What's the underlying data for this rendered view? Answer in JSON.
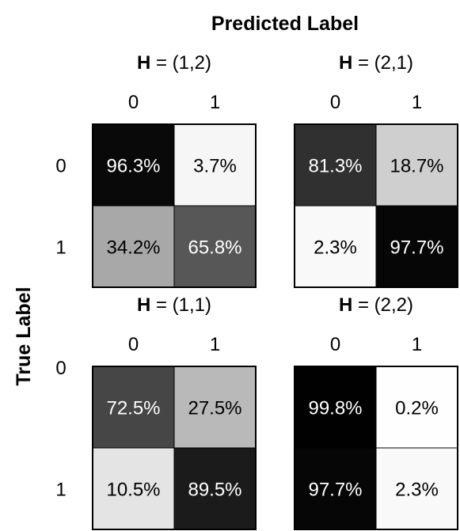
{
  "chart_data": {
    "type": "heatmap",
    "title": "Predicted Label",
    "ylabel": "True Label",
    "matrices": [
      {
        "label_prefix": "H",
        "label_value": " = (1,2)",
        "col_labels": [
          "0",
          "1"
        ],
        "row_labels": [
          "0",
          "1"
        ],
        "values": [
          [
            96.3,
            3.7
          ],
          [
            34.2,
            65.8
          ]
        ],
        "cell_text": [
          [
            "96.3%",
            "3.7%"
          ],
          [
            "34.2%",
            "65.8%"
          ]
        ]
      },
      {
        "label_prefix": "H",
        "label_value": " = (2,1)",
        "col_labels": [
          "0",
          "1"
        ],
        "row_labels": [],
        "values": [
          [
            81.3,
            18.7
          ],
          [
            2.3,
            97.7
          ]
        ],
        "cell_text": [
          [
            "81.3%",
            "18.7%"
          ],
          [
            "2.3%",
            "97.7%"
          ]
        ]
      },
      {
        "label_prefix": "H",
        "label_value": " = (1,1)",
        "col_labels": [
          "0",
          "1"
        ],
        "row_labels": [
          "0",
          "1"
        ],
        "values": [
          [
            72.5,
            27.5
          ],
          [
            10.5,
            89.5
          ]
        ],
        "cell_text": [
          [
            "72.5%",
            "27.5%"
          ],
          [
            "10.5%",
            "89.5%"
          ]
        ]
      },
      {
        "label_prefix": "H",
        "label_value": " = (2,2)",
        "col_labels": [
          "0",
          "1"
        ],
        "row_labels": [],
        "values": [
          [
            99.8,
            0.2
          ],
          [
            97.7,
            2.3
          ]
        ],
        "cell_text": [
          [
            "99.8%",
            "0.2%"
          ],
          [
            "97.7%",
            "2.3%"
          ]
        ]
      }
    ],
    "colormap": "greys",
    "vmin": 0,
    "vmax": 100
  }
}
